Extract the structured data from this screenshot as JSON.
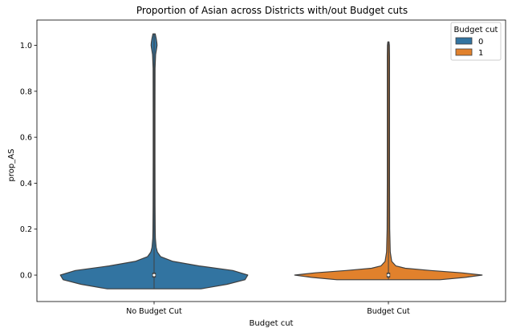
{
  "chart_data": {
    "type": "violin",
    "title": "Proportion of Asian across Districts with/out Budget cuts",
    "xlabel": "Budget cut",
    "ylabel": "prop_AS",
    "categories": [
      "No Budget Cut",
      "Budget Cut"
    ],
    "ylim": [
      -0.115,
      1.11
    ],
    "yticks": [
      0.0,
      0.2,
      0.4,
      0.6,
      0.8,
      1.0
    ],
    "ytick_labels": [
      "0.0",
      "0.2",
      "0.4",
      "0.6",
      "0.8",
      "1.0"
    ],
    "grid": false,
    "legend": {
      "title": "Budget cut",
      "placement": "top-right",
      "entries": [
        {
          "label": "0",
          "color": "#3274a1"
        },
        {
          "label": "1",
          "color": "#e1812c"
        }
      ]
    },
    "series": [
      {
        "category": "No Budget Cut",
        "hue": "0",
        "color": "#3274a1",
        "median": 0.0,
        "min": -0.06,
        "max": 1.05,
        "density_profile": [
          [
            -0.06,
            0.5
          ],
          [
            -0.04,
            0.78
          ],
          [
            -0.02,
            0.97
          ],
          [
            0.0,
            1.0
          ],
          [
            0.02,
            0.84
          ],
          [
            0.04,
            0.48
          ],
          [
            0.06,
            0.2
          ],
          [
            0.08,
            0.07
          ],
          [
            0.1,
            0.035
          ],
          [
            0.12,
            0.022
          ],
          [
            0.16,
            0.014
          ],
          [
            0.2,
            0.012
          ],
          [
            0.3,
            0.01
          ],
          [
            0.5,
            0.009
          ],
          [
            0.7,
            0.009
          ],
          [
            0.9,
            0.01
          ],
          [
            0.96,
            0.016
          ],
          [
            0.99,
            0.028
          ],
          [
            1.0,
            0.032
          ],
          [
            1.01,
            0.03
          ],
          [
            1.03,
            0.022
          ],
          [
            1.05,
            0.012
          ]
        ]
      },
      {
        "category": "Budget Cut",
        "hue": "1",
        "color": "#e1812c",
        "median": 0.0,
        "min": -0.02,
        "max": 1.015,
        "density_profile": [
          [
            -0.02,
            0.55
          ],
          [
            -0.01,
            0.82
          ],
          [
            0.0,
            1.0
          ],
          [
            0.01,
            0.78
          ],
          [
            0.02,
            0.45
          ],
          [
            0.03,
            0.18
          ],
          [
            0.04,
            0.08
          ],
          [
            0.06,
            0.035
          ],
          [
            0.1,
            0.02
          ],
          [
            0.2,
            0.014
          ],
          [
            0.4,
            0.012
          ],
          [
            0.6,
            0.012
          ],
          [
            0.8,
            0.012
          ],
          [
            0.95,
            0.012
          ],
          [
            1.0,
            0.01
          ],
          [
            1.015,
            0.006
          ]
        ]
      }
    ]
  }
}
